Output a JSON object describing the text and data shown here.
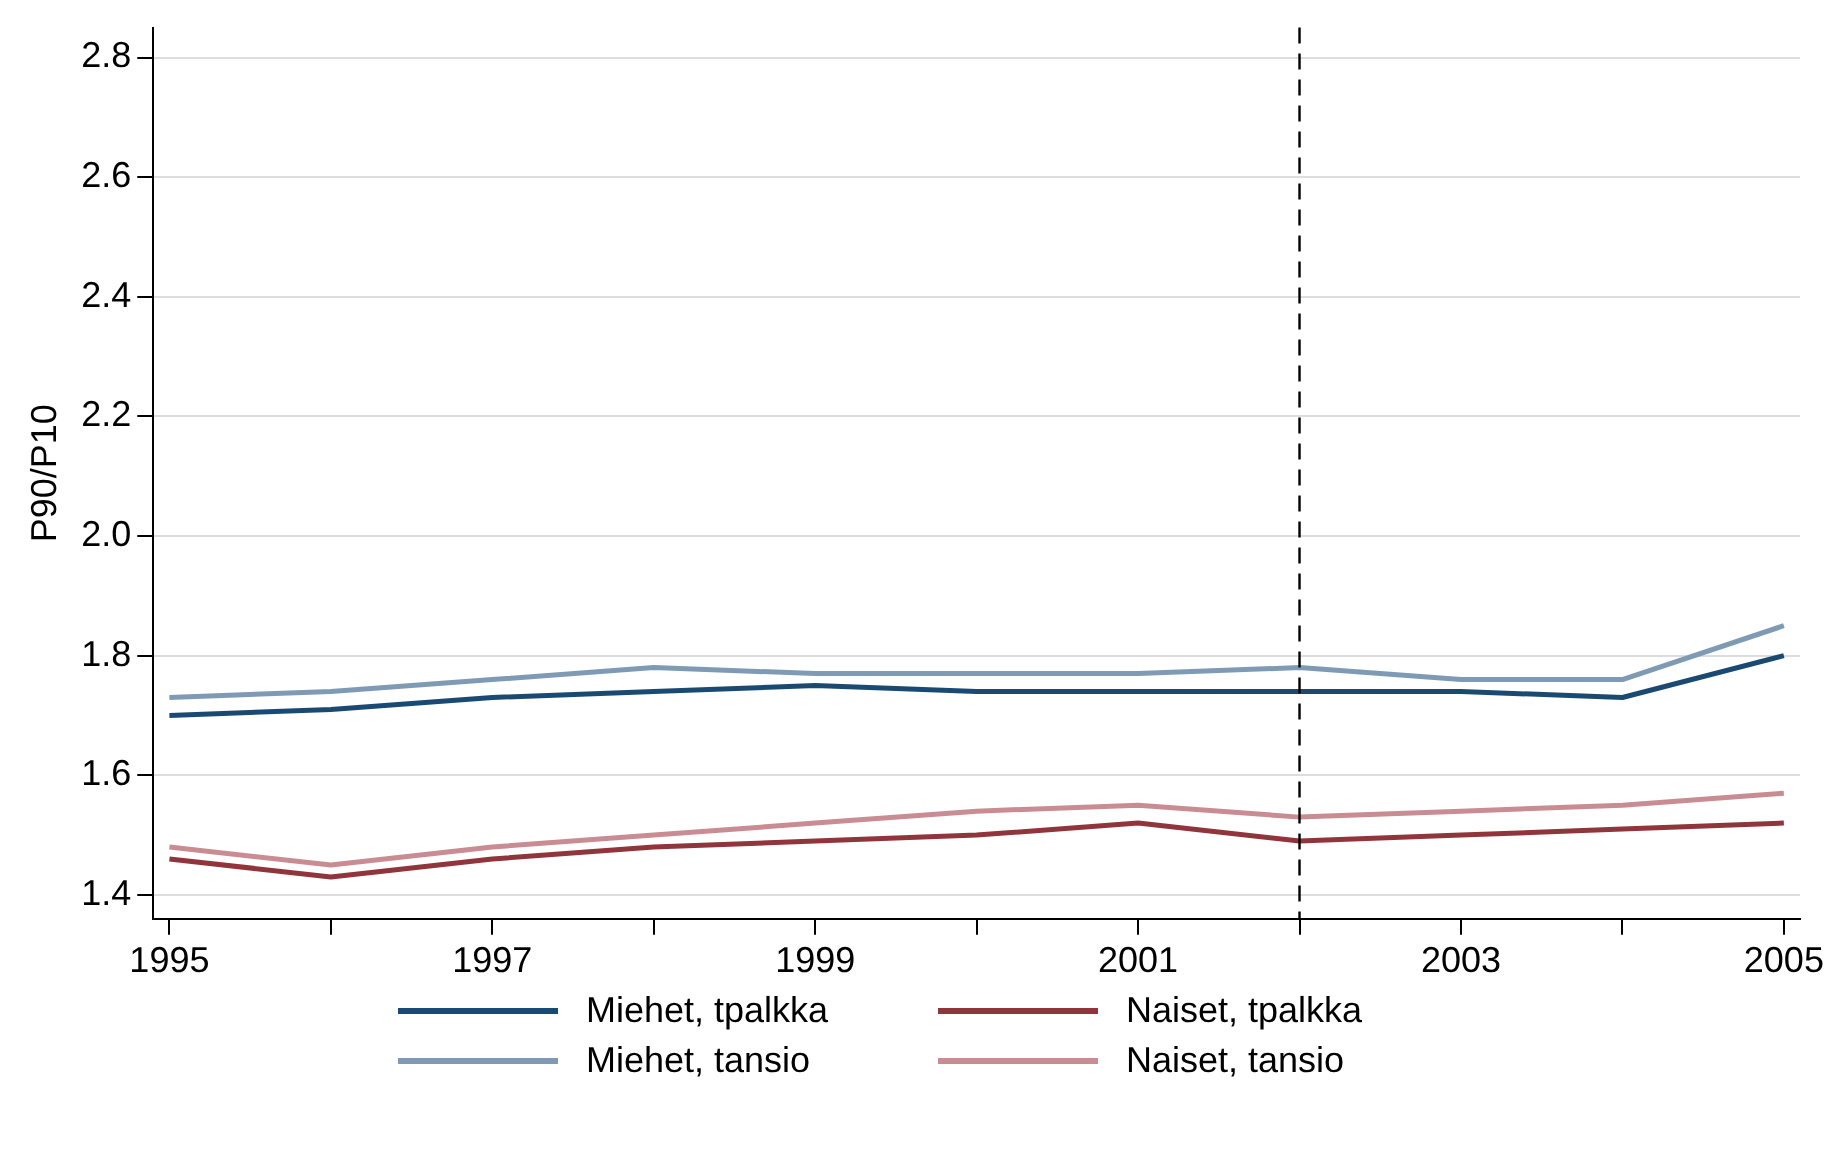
{
  "chart_data": {
    "type": "line",
    "ylabel": "P90/P10",
    "x": [
      1995,
      1996,
      1997,
      1998,
      1999,
      2000,
      2001,
      2002,
      2003,
      2004,
      2005
    ],
    "series": [
      {
        "name": "Miehet, tpalkka",
        "color": "#1a4a72",
        "values": [
          1.7,
          1.71,
          1.73,
          1.74,
          1.75,
          1.74,
          1.74,
          1.74,
          1.74,
          1.73,
          1.8
        ]
      },
      {
        "name": "Naiset, tpalkka",
        "color": "#90353b",
        "values": [
          1.46,
          1.43,
          1.46,
          1.48,
          1.49,
          1.5,
          1.52,
          1.49,
          1.5,
          1.51,
          1.52
        ]
      },
      {
        "name": "Miehet, tansio",
        "color": "#7f9ab5",
        "values": [
          1.73,
          1.74,
          1.76,
          1.78,
          1.77,
          1.77,
          1.77,
          1.78,
          1.76,
          1.76,
          1.85
        ]
      },
      {
        "name": "Naiset, tansio",
        "color": "#c98c93",
        "values": [
          1.48,
          1.45,
          1.48,
          1.5,
          1.52,
          1.54,
          1.55,
          1.53,
          1.54,
          1.55,
          1.57
        ]
      }
    ],
    "xlim": [
      1994.9,
      2005.1
    ],
    "xticks": [
      1995,
      {
        "value": 1996,
        "label": null
      },
      1997,
      {
        "value": 1998,
        "label": null
      },
      1999,
      {
        "value": 2000,
        "label": null
      },
      2001,
      {
        "value": 2002,
        "label": null
      },
      2003,
      {
        "value": 2004,
        "label": null
      },
      2005
    ],
    "ylim": [
      1.36,
      2.85
    ],
    "yticks": [
      {
        "value": 1.4,
        "label": "1.4"
      },
      {
        "value": 1.6,
        "label": "1.6"
      },
      {
        "value": 1.8,
        "label": "1.8"
      },
      {
        "value": 2.0,
        "label": "2.0"
      },
      {
        "value": 2.2,
        "label": "2.2"
      },
      {
        "value": 2.4,
        "label": "2.4"
      },
      {
        "value": 2.6,
        "label": "2.6"
      },
      {
        "value": 2.8,
        "label": "2.8"
      }
    ],
    "grid": "y",
    "legend": "bottom",
    "marker": "none",
    "line_style": "solid",
    "ref_lines": [
      {
        "axis": "x",
        "value": 2002,
        "color": "#000000",
        "line_style": "dashed"
      }
    ]
  }
}
